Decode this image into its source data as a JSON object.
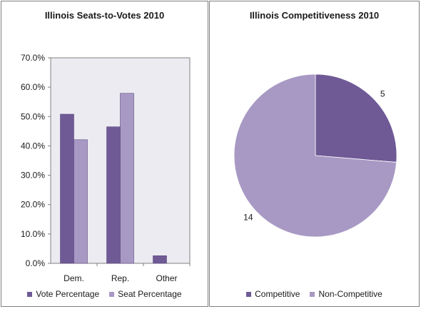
{
  "colors": {
    "series_dark": "#6f5a96",
    "series_light": "#a899c4",
    "plot_bg": "#ecebf1",
    "plot_border": "#808080"
  },
  "chart_data": [
    {
      "type": "bar",
      "title": "Illinois Seats-to-Votes 2010",
      "categories": [
        "Dem.",
        "Rep.",
        "Other"
      ],
      "series": [
        {
          "name": "Vote Percentage",
          "values": [
            50.8,
            46.5,
            2.6
          ],
          "color": "#6f5a96"
        },
        {
          "name": "Seat Percentage",
          "values": [
            42.1,
            57.9,
            0
          ],
          "color": "#a899c4"
        }
      ],
      "ylim": [
        0,
        70
      ],
      "yticks": [
        "0.0%",
        "10.0%",
        "20.0%",
        "30.0%",
        "40.0%",
        "50.0%",
        "60.0%",
        "70.0%"
      ],
      "grid": false,
      "legend": "bottom"
    },
    {
      "type": "pie",
      "title": "Illinois Competitiveness 2010",
      "slices": [
        {
          "label": "Competitive",
          "value": 5,
          "data_label": "5",
          "color": "#6f5a96"
        },
        {
          "label": "Non-Competitive",
          "value": 14,
          "data_label": "14",
          "color": "#a899c4"
        }
      ],
      "legend": "bottom"
    }
  ]
}
